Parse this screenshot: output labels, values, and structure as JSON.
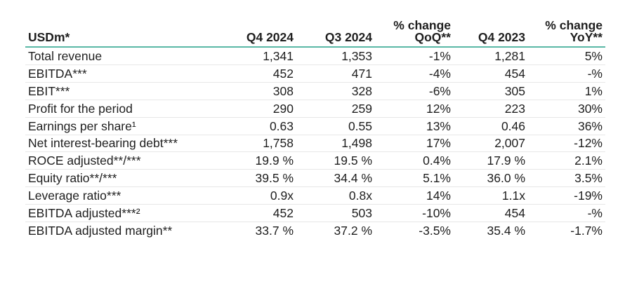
{
  "table": {
    "headers": {
      "label": "USDm*",
      "q4_2024": "Q4 2024",
      "q3_2024": "Q3 2024",
      "qoq_line1": "% change",
      "qoq_line2": "QoQ**",
      "q4_2023": "Q4 2023",
      "yoy_line1": "% change",
      "yoy_line2": "YoY**"
    },
    "rows": [
      {
        "label": "Total revenue",
        "q4_2024": "1,341",
        "q3_2024": "1,353",
        "qoq": "-1%",
        "q4_2023": "1,281",
        "yoy": "5%"
      },
      {
        "label": "EBITDA***",
        "q4_2024": "452",
        "q3_2024": "471",
        "qoq": "-4%",
        "q4_2023": "454",
        "yoy": "-%"
      },
      {
        "label": "EBIT***",
        "q4_2024": "308",
        "q3_2024": "328",
        "qoq": "-6%",
        "q4_2023": "305",
        "yoy": "1%"
      },
      {
        "label": "Profit for the period",
        "q4_2024": "290",
        "q3_2024": "259",
        "qoq": "12%",
        "q4_2023": "223",
        "yoy": "30%"
      },
      {
        "label": "Earnings per share¹",
        "q4_2024": "0.63",
        "q3_2024": "0.55",
        "qoq": "13%",
        "q4_2023": "0.46",
        "yoy": "36%"
      },
      {
        "label": "Net interest-bearing debt***",
        "q4_2024": "1,758",
        "q3_2024": "1,498",
        "qoq": "17%",
        "q4_2023": "2,007",
        "yoy": "-12%"
      },
      {
        "label": "ROCE adjusted**/***",
        "q4_2024": "19.9 %",
        "q3_2024": "19.5 %",
        "qoq": "0.4%",
        "q4_2023": "17.9 %",
        "yoy": "2.1%"
      },
      {
        "label": "Equity ratio**/***",
        "q4_2024": "39.5 %",
        "q3_2024": "34.4 %",
        "qoq": "5.1%",
        "q4_2023": "36.0 %",
        "yoy": "3.5%"
      },
      {
        "label": "Leverage ratio***",
        "q4_2024": "0.9x",
        "q3_2024": "0.8x",
        "qoq": "14%",
        "q4_2023": "1.1x",
        "yoy": "-19%"
      },
      {
        "label": "EBITDA adjusted***²",
        "q4_2024": "452",
        "q3_2024": "503",
        "qoq": "-10%",
        "q4_2023": "454",
        "yoy": "-%"
      },
      {
        "label": "EBITDA adjusted margin**",
        "q4_2024": "33.7 %",
        "q3_2024": "37.2 %",
        "qoq": "-3.5%",
        "q4_2023": "35.4 %",
        "yoy": "-1.7%"
      }
    ]
  }
}
